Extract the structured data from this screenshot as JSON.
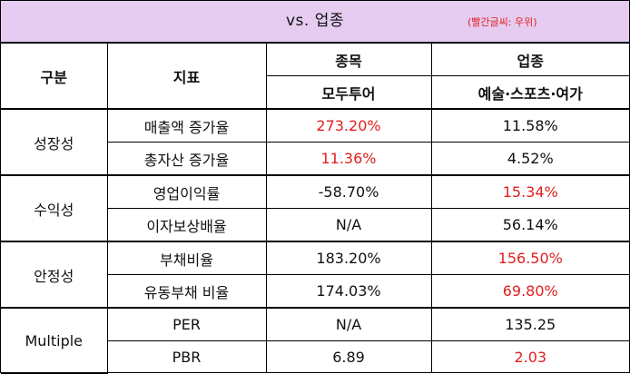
{
  "title": "vs. 업종",
  "note": "(빨간글씨: 우위)",
  "header": {
    "category": "구분",
    "indicator": "지표",
    "stock_group": "종목",
    "stock_name": "모두투어",
    "industry_group": "업종",
    "industry_name": "예술·스포츠·여가"
  },
  "groups": [
    {
      "name": "성장성",
      "rows": [
        {
          "indicator": "매출액 증가율",
          "stock": "273.20%",
          "industry": "11.58%",
          "stock_red": true,
          "industry_red": false
        },
        {
          "indicator": "총자산 증가율",
          "stock": "11.36%",
          "industry": "4.52%",
          "stock_red": true,
          "industry_red": false
        }
      ]
    },
    {
      "name": "수익성",
      "rows": [
        {
          "indicator": "영업이익률",
          "stock": "-58.70%",
          "industry": "15.34%",
          "stock_red": false,
          "industry_red": true
        },
        {
          "indicator": "이자보상배율",
          "stock": "N/A",
          "industry": "56.14%",
          "stock_red": false,
          "industry_red": false
        }
      ]
    },
    {
      "name": "안정성",
      "rows": [
        {
          "indicator": "부채비율",
          "stock": "183.20%",
          "industry": "156.50%",
          "stock_red": false,
          "industry_red": true
        },
        {
          "indicator": "유동부채 비율",
          "stock": "174.03%",
          "industry": "69.80%",
          "stock_red": false,
          "industry_red": true
        }
      ]
    },
    {
      "name": "Multiple",
      "rows": [
        {
          "indicator": "PER",
          "stock": "N/A",
          "industry": "135.25",
          "stock_red": false,
          "industry_red": false
        },
        {
          "indicator": "PBR",
          "stock": "6.89",
          "industry": "2.03",
          "stock_red": false,
          "industry_red": true
        }
      ]
    }
  ],
  "colors": {
    "title_bg": "#e5ccf0",
    "advantage": "#e02020"
  }
}
